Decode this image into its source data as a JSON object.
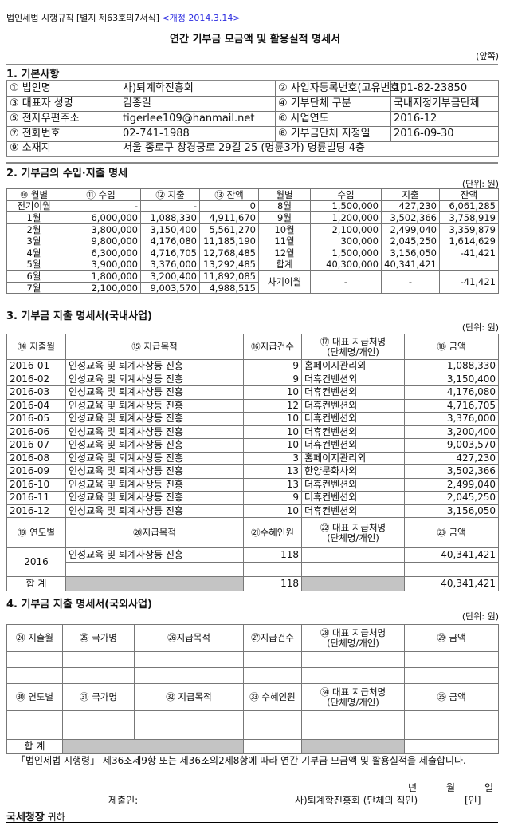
{
  "header": {
    "form_ref": "법인세법 시행규칙 [별지 제63호의7서식]",
    "revision": "<개정 2014.3.14>",
    "title": "연간 기부금 모금액 및 활용실적 명세서",
    "page_side": "(앞쪽)"
  },
  "section1": {
    "title": "1. 기본사항",
    "rows": [
      {
        "l1": "① 법인명",
        "v1": "사)퇴계학진흥회",
        "l2": "② 사업자등록번호(고유번호)",
        "v2": "101-82-23850"
      },
      {
        "l1": "③ 대표자 성명",
        "v1": "김종길",
        "l2": "④ 기부단체 구분",
        "v2": "국내지정기부금단체"
      },
      {
        "l1": "⑤ 전자우편주소",
        "v1": "tigerlee109@hanmail.net",
        "l2": "⑥ 사업연도",
        "v2": "2016-12"
      },
      {
        "l1": "⑦ 전화번호",
        "v1": "02-741-1988",
        "l2": "⑧  기부금단체 지정일",
        "v2": "2016-09-30"
      }
    ],
    "address_label": "⑨ 소재지",
    "address": "서울 종로구 창경궁로 29길 25 (명륜3가) 명륜빌딩 4층"
  },
  "section2": {
    "title": "2. 기부금의 수입·지출 명세",
    "unit": "(단위: 원)",
    "headers": [
      "⑩ 월별",
      "⑪  수입",
      "⑫ 지출",
      "⑬ 잔액",
      "월별",
      "수입",
      "지출",
      "잔액"
    ],
    "rows": [
      [
        "전기이월",
        "-",
        "-",
        "0",
        "8월",
        "1,500,000",
        "427,230",
        "6,061,285"
      ],
      [
        "1월",
        "6,000,000",
        "1,088,330",
        "4,911,670",
        "9월",
        "1,200,000",
        "3,502,366",
        "3,758,919"
      ],
      [
        "2월",
        "3,800,000",
        "3,150,400",
        "5,561,270",
        "10월",
        "2,100,000",
        "2,499,040",
        "3,359,879"
      ],
      [
        "3월",
        "9,800,000",
        "4,176,080",
        "11,185,190",
        "11월",
        "300,000",
        "2,045,250",
        "1,614,629"
      ],
      [
        "4월",
        "6,300,000",
        "4,716,705",
        "12,768,485",
        "12월",
        "1,500,000",
        "3,156,050",
        "-41,421"
      ],
      [
        "5월",
        "3,900,000",
        "3,376,000",
        "13,292,485",
        "합계",
        "40,300,000",
        "40,341,421",
        ""
      ]
    ],
    "tail_rows": [
      [
        "6월",
        "1,800,000",
        "3,200,400",
        "11,892,085"
      ],
      [
        "7월",
        "2,100,000",
        "9,003,570",
        "4,988,515"
      ]
    ],
    "carry_over": [
      "차기이월",
      "-",
      "-",
      "-41,421"
    ]
  },
  "section3": {
    "title": "3. 기부금 지출 명세서(국내사업)",
    "unit": "(단위: 원)",
    "headers": [
      "⑭ 지출월",
      "⑮ 지급목적",
      "⑯지급건수",
      "⑰ 대표 지급처명\n(단체명/개인)",
      "⑱ 금액"
    ],
    "rows": [
      [
        "2016-01",
        "인성교육 및 퇴계사상등 진흥",
        "9",
        "홈페이지관리외",
        "1,088,330"
      ],
      [
        "2016-02",
        "인성교육 및 퇴계사상등 진흥",
        "9",
        "더휴컨벤션외",
        "3,150,400"
      ],
      [
        "2016-03",
        "인성교육 및 퇴계사상등 진흥",
        "10",
        "더휴컨벤션외",
        "4,176,080"
      ],
      [
        "2016-04",
        "인성교육 및 퇴계사상등 진흥",
        "12",
        "더휴컨벤션외",
        "4,716,705"
      ],
      [
        "2016-05",
        "인성교육 및 퇴계사상등 진흥",
        "10",
        "더휴컨벤션외",
        "3,376,000"
      ],
      [
        "2016-06",
        "인성교육 및 퇴계사상등 진흥",
        "10",
        "더휴컨벤션외",
        "3,200,400"
      ],
      [
        "2016-07",
        "인성교육 및 퇴계사상등 진흥",
        "10",
        "더휴컨벤션외",
        "9,003,570"
      ],
      [
        "2016-08",
        "인성교육 및 퇴계사상등 진흥",
        "3",
        "홈페이지관리외",
        "427,230"
      ],
      [
        "2016-09",
        "인성교육 및 퇴계사상등 진흥",
        "13",
        "한양문화사외",
        "3,502,366"
      ],
      [
        "2016-10",
        "인성교육 및 퇴계사상등 진흥",
        "13",
        "더휴컨벤션외",
        "2,499,040"
      ],
      [
        "2016-11",
        "인성교육 및 퇴계사상등 진흥",
        "9",
        "더휴컨벤션외",
        "2,045,250"
      ],
      [
        "2016-12",
        "인성교육 및 퇴계사상등 진흥",
        "10",
        "더휴컨벤션외",
        "3,156,050"
      ]
    ],
    "headers2": [
      "⑲ 연도별",
      "⑳지급목적",
      "㉑수혜인원",
      "㉒ 대표 지급처명\n(단체명/개인)",
      "㉓ 금액"
    ],
    "year": "2016",
    "year_row": [
      "인성교육 및 퇴계사상등 진흥",
      "118",
      "",
      "40,341,421"
    ],
    "total_label": "합 계",
    "total_count": "118",
    "total_amount": "40,341,421"
  },
  "section4": {
    "title": "4. 기부금 지출 명세서(국외사업)",
    "unit": "(단위: 원)",
    "headers": [
      "㉔ 지출월",
      "㉕ 국가명",
      "㉖지급목적",
      "㉗지급건수",
      "㉘ 대표 지급처명\n(단체명/개인)",
      "㉙ 금액"
    ],
    "headers2": [
      "㉚ 연도별",
      "㉛ 국가명",
      "㉜ 지급목적",
      "㉝ 수혜인원",
      "㉞ 대표 지급처명\n(단체명/개인)",
      "㉟ 금액"
    ],
    "total_label": "합 계"
  },
  "footer": {
    "statement": "「법인세법 시행령」 제36조제9항 또는 제36조의2제8항에 따라 연간 기부금 모금액 및 활용실적을 제출합니다.",
    "year": "년",
    "month": "월",
    "day": "일",
    "submit_label": "제출인:",
    "submitter": "사)퇴계학진흥회 (단체의 직인)",
    "seal": "[인]",
    "addressee": "국세청장",
    "addressee_suffix": "귀하"
  }
}
